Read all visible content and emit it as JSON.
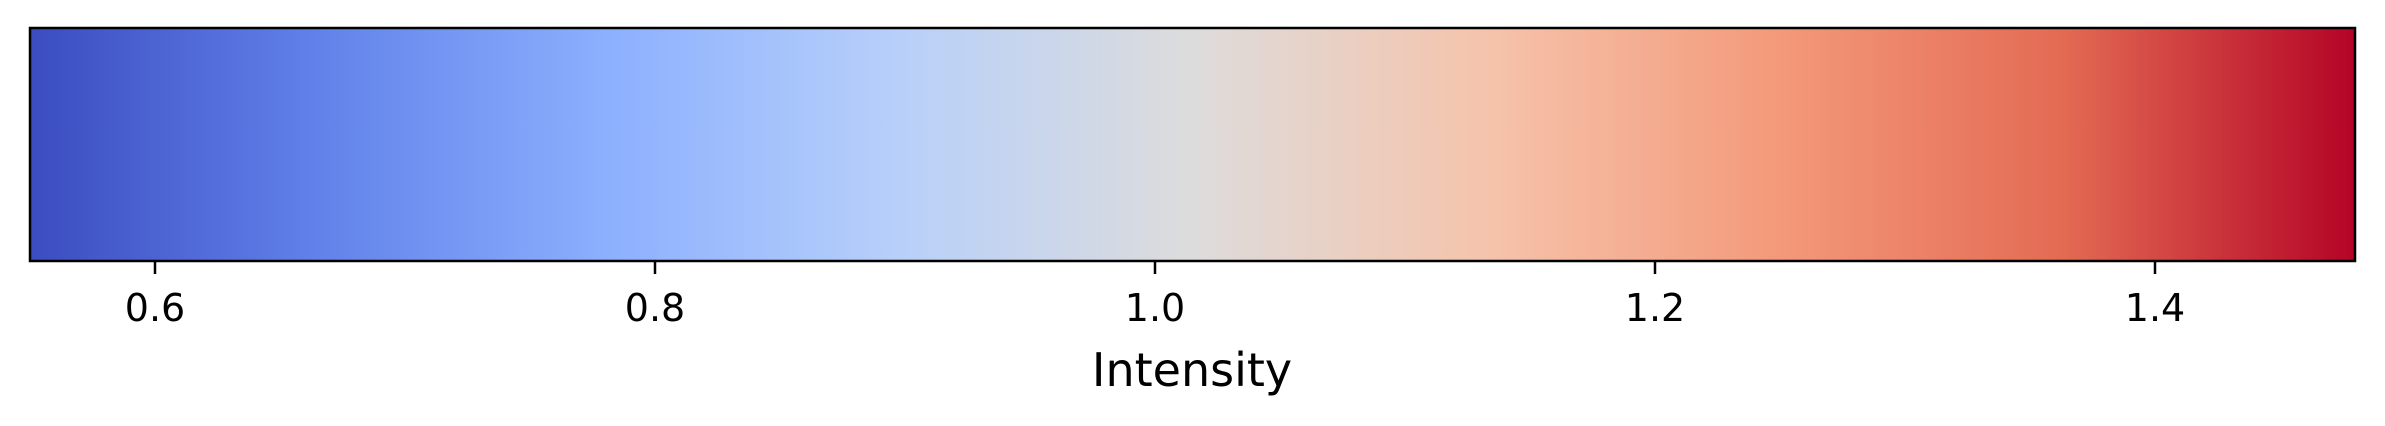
{
  "chart_data": {
    "type": "colorbar",
    "colormap": "coolwarm",
    "orientation": "horizontal",
    "xlabel": "Intensity",
    "range": [
      0.55,
      1.48
    ],
    "ticks": [
      0.6,
      0.8,
      1.0,
      1.2,
      1.4
    ],
    "tick_labels": [
      "0.6",
      "0.8",
      "1.0",
      "1.2",
      "1.4"
    ],
    "color_stops": [
      {
        "value": 0.55,
        "color": "#3b4cc0"
      },
      {
        "value": 0.6662,
        "color": "#6282ea"
      },
      {
        "value": 0.7825,
        "color": "#8db0fe"
      },
      {
        "value": 0.8988,
        "color": "#b8d0f9"
      },
      {
        "value": 1.015,
        "color": "#dddcdc"
      },
      {
        "value": 1.1313,
        "color": "#f5c4ac"
      },
      {
        "value": 1.2475,
        "color": "#f49a7b"
      },
      {
        "value": 1.3638,
        "color": "#e36a53"
      },
      {
        "value": 1.48,
        "color": "#b40426"
      }
    ]
  }
}
